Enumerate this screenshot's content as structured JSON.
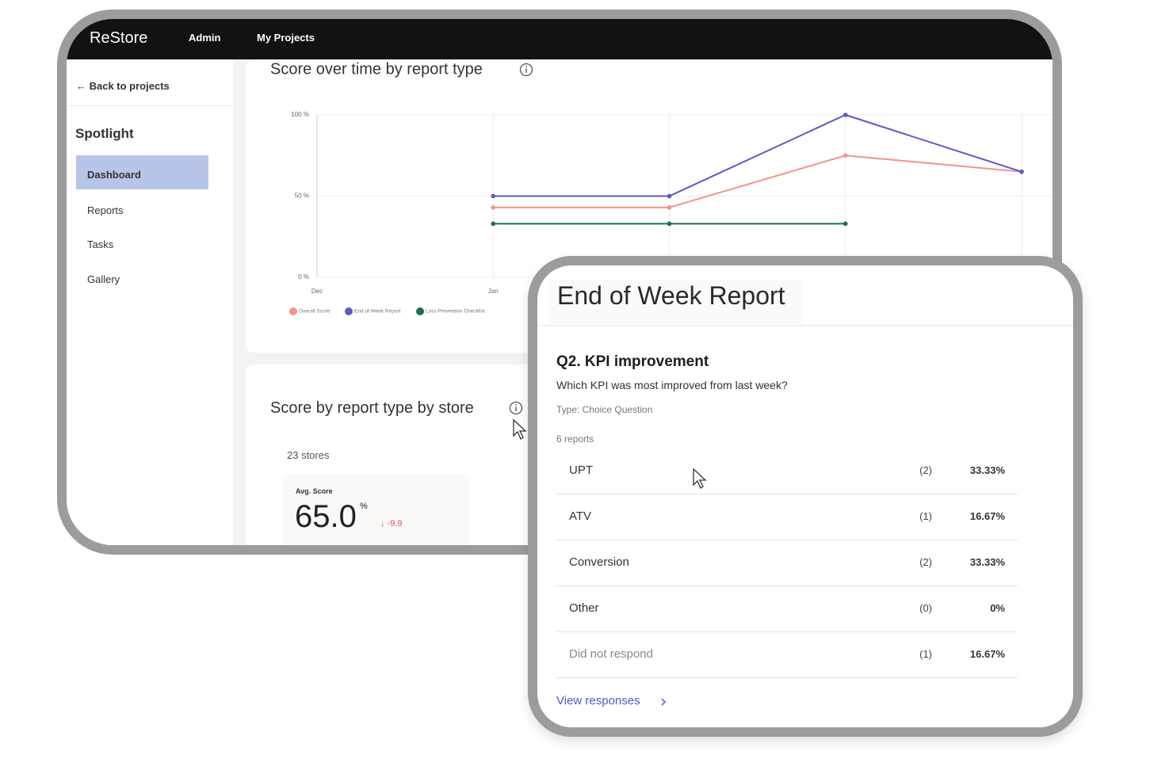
{
  "nav": {
    "brand": "ReStore",
    "links": [
      "Admin",
      "My Projects"
    ]
  },
  "sidebar": {
    "back": "← Back to projects",
    "section": "Spotlight",
    "items": [
      "Dashboard",
      "Reports",
      "Tasks",
      "Gallery"
    ]
  },
  "chart_data": {
    "type": "line",
    "title": "Score over time by report type",
    "categories": [
      "Dec",
      "Jan",
      null,
      null,
      null
    ],
    "series": [
      {
        "name": "Overall Score",
        "color": "#f4948a",
        "values": [
          null,
          43,
          43,
          75,
          65
        ]
      },
      {
        "name": "End of Week Report",
        "color": "#5b5bc4",
        "values": [
          null,
          50,
          50,
          100,
          65
        ]
      },
      {
        "name": "Loss Prevention Checklist",
        "color": "#1f6b5a",
        "values": [
          null,
          33,
          33,
          33,
          null
        ]
      }
    ],
    "ylim": [
      0,
      100
    ],
    "yticks": [
      {
        "value": 0,
        "label": "0 %"
      },
      {
        "value": 50,
        "label": "50 %"
      },
      {
        "value": 100,
        "label": "100 %"
      }
    ],
    "grid": true,
    "legend": "bottom-left"
  },
  "store_panel": {
    "title": "Score by report type by store",
    "count": "23 stores",
    "stat_label": "Avg. Score",
    "stat_value": "65.0",
    "stat_unit": "%",
    "stat_change": "↓ -9.9"
  },
  "report_card": {
    "title": "End of Week Report",
    "question": "Q2. KPI improvement",
    "prompt": "Which KPI was most improved from last week?",
    "type": "Type: Choice Question",
    "reports": "6 reports",
    "rows": [
      {
        "label": "UPT",
        "count": "(2)",
        "percent": "33.33%"
      },
      {
        "label": "ATV",
        "count": "(1)",
        "percent": "16.67%"
      },
      {
        "label": "Conversion",
        "count": "(2)",
        "percent": "33.33%"
      },
      {
        "label": "Other",
        "count": "(0)",
        "percent": "0%"
      },
      {
        "label": "Did not respond",
        "count": "(1)",
        "percent": "16.67%"
      }
    ],
    "link": "View responses"
  }
}
